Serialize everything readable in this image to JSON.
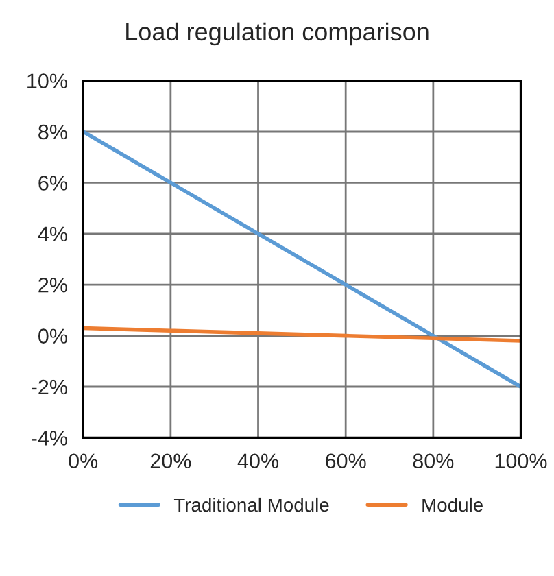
{
  "chart_data": {
    "type": "line",
    "title": "Load regulation comparison",
    "x": [
      0,
      20,
      40,
      60,
      80,
      100
    ],
    "series": [
      {
        "name": "Traditional Module",
        "color": "#5b9bd5",
        "values": [
          8,
          6,
          4,
          2,
          0,
          -2
        ]
      },
      {
        "name": "Module",
        "color": "#ed7d31",
        "values": [
          0.3,
          0.2,
          0.1,
          0,
          -0.1,
          -0.2
        ]
      }
    ],
    "xlim": [
      0,
      100
    ],
    "xticks": [
      {
        "value": 0,
        "label": "0%"
      },
      {
        "value": 20,
        "label": "20%"
      },
      {
        "value": 40,
        "label": "40%"
      },
      {
        "value": 60,
        "label": "60%"
      },
      {
        "value": 80,
        "label": "80%"
      },
      {
        "value": 100,
        "label": "100%"
      }
    ],
    "ylim": [
      -4,
      10
    ],
    "yticks": [
      {
        "value": -4,
        "label": "-4%"
      },
      {
        "value": -2,
        "label": "-2%"
      },
      {
        "value": 0,
        "label": "0%"
      },
      {
        "value": 2,
        "label": "2%"
      },
      {
        "value": 4,
        "label": "4%"
      },
      {
        "value": 6,
        "label": "6%"
      },
      {
        "value": 8,
        "label": "8%"
      },
      {
        "value": 10,
        "label": "10%"
      }
    ],
    "grid": true,
    "legend": "bottom",
    "marker": "none",
    "line_style": "solid"
  }
}
